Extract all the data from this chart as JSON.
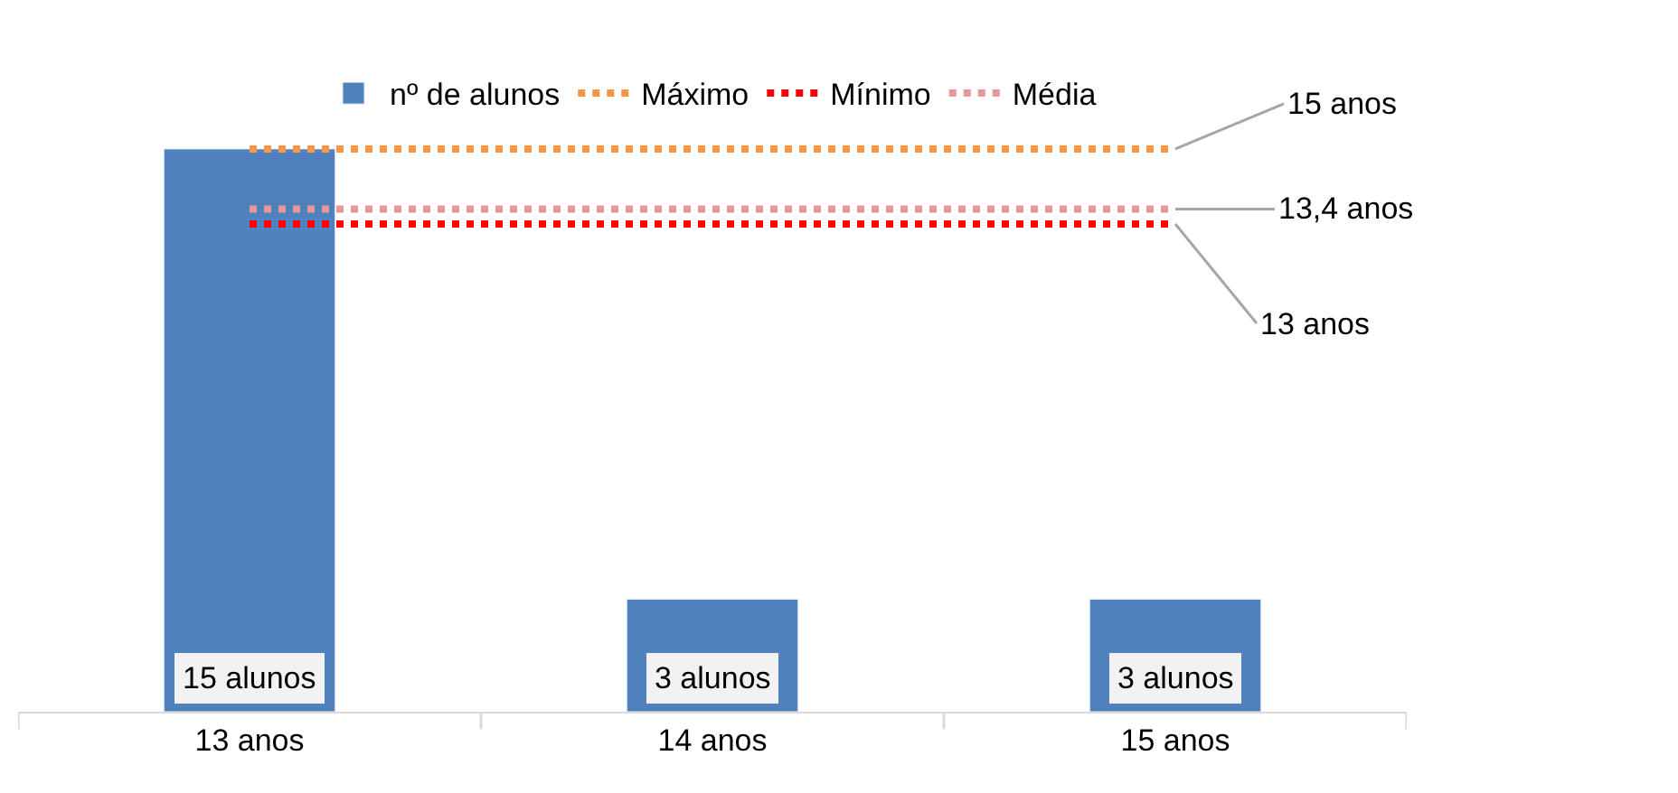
{
  "chart_data": {
    "type": "bar",
    "categories": [
      "13 anos",
      "14 anos",
      "15 anos"
    ],
    "series": [
      {
        "name": "nº de alunos",
        "color": "#4f81bd",
        "values": [
          15,
          3,
          3
        ],
        "value_labels": [
          "15 alunos",
          "3 alunos",
          "3 alunos"
        ]
      },
      {
        "name": "Máximo",
        "type": "line",
        "color": "#f79646",
        "line_style": "dotted",
        "values": [
          15,
          15,
          15
        ],
        "value_labels": [
          null,
          null,
          "15 anos"
        ]
      },
      {
        "name": "Mínimo",
        "type": "line",
        "color": "#ff0000",
        "line_style": "dotted",
        "values": [
          13,
          13,
          13
        ],
        "value_labels": [
          null,
          null,
          "13 anos"
        ]
      },
      {
        "name": "Média",
        "type": "line",
        "color": "#e6999a",
        "line_style": "dotted",
        "values": [
          13.4,
          13.4,
          13.4
        ],
        "value_labels": [
          null,
          null,
          "13,4 anos"
        ]
      }
    ],
    "legend": "top"
  }
}
